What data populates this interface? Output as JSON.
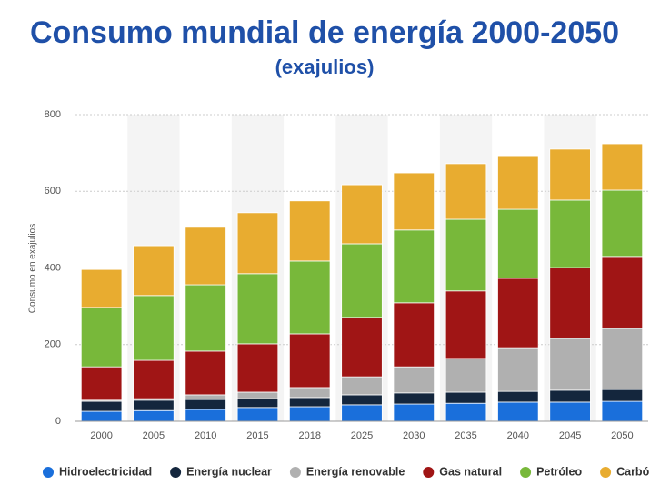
{
  "chart_data": {
    "type": "bar",
    "stacked": true,
    "title": "Consumo mundial de energía 2000-2050",
    "subtitle": "(exajulios)",
    "y_label": "Consumo en exajulios",
    "categories": [
      "2000",
      "2005",
      "2010",
      "2015",
      "2018",
      "2025",
      "2030",
      "2035",
      "2040",
      "2045",
      "2050"
    ],
    "series": [
      {
        "name": "Hidroelectricidad",
        "color": "#1a6fdb",
        "values": [
          26,
          28,
          31,
          36,
          38,
          43,
          45,
          47,
          50,
          50,
          52
        ]
      },
      {
        "name": "Energía nuclear",
        "color": "#14263d",
        "values": [
          26,
          27,
          26,
          23,
          24,
          26,
          29,
          29,
          28,
          31,
          31
        ]
      },
      {
        "name": "Energía renovable",
        "color": "#b0b0b0",
        "values": [
          3,
          4,
          12,
          17,
          26,
          47,
          68,
          88,
          114,
          135,
          159
        ]
      },
      {
        "name": "Gas natural",
        "color": "#a01515",
        "values": [
          87,
          100,
          114,
          126,
          140,
          155,
          167,
          176,
          181,
          185,
          188
        ]
      },
      {
        "name": "Petróleo",
        "color": "#78b83a",
        "values": [
          155,
          169,
          173,
          183,
          190,
          192,
          190,
          187,
          180,
          176,
          173
        ]
      },
      {
        "name": "Carbón",
        "color": "#e8ac30",
        "values": [
          99,
          130,
          150,
          159,
          157,
          154,
          149,
          145,
          140,
          133,
          121
        ]
      }
    ],
    "ylim": [
      0,
      800
    ],
    "yticks": [
      0,
      200,
      400,
      600,
      800
    ],
    "grid": true
  }
}
